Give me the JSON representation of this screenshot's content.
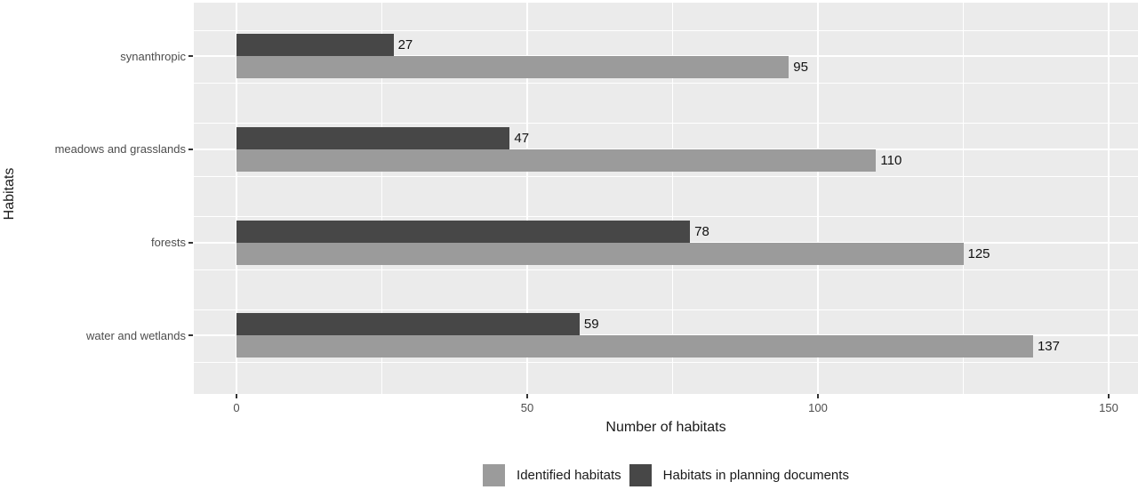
{
  "chart_data": {
    "type": "bar",
    "orientation": "horizontal",
    "title": "",
    "xlabel": "Number of habitats",
    "ylabel": "Habitats",
    "categories": [
      "synanthropic",
      "meadows and grasslands",
      "forests",
      "water and wetlands"
    ],
    "series": [
      {
        "name": "Identified habitats",
        "color": "#9B9B9B",
        "values": [
          95,
          110,
          125,
          137
        ]
      },
      {
        "name": "Habitats in planning documents",
        "color": "#474747",
        "values": [
          27,
          47,
          78,
          59
        ]
      }
    ],
    "value_labels": {
      "identified": [
        95,
        110,
        125,
        137
      ],
      "planning": [
        27,
        47,
        78,
        59
      ]
    },
    "x_major_ticks": [
      0,
      50,
      100,
      150
    ],
    "x_minor_ticks": [
      25,
      75,
      125
    ],
    "xlim": [
      -7,
      155
    ],
    "grid": true,
    "legend_position": "bottom"
  },
  "colors": {
    "page_bg": "#FFFFFF",
    "panel_bg": "#EBEBEB",
    "gridline": "#FFFFFF",
    "tick_mark": "#333333",
    "tick_label": "#4D4D4D",
    "axis_title": "#1A1A1A",
    "value_label": "#111111",
    "legend_text": "#1A1A1A"
  }
}
